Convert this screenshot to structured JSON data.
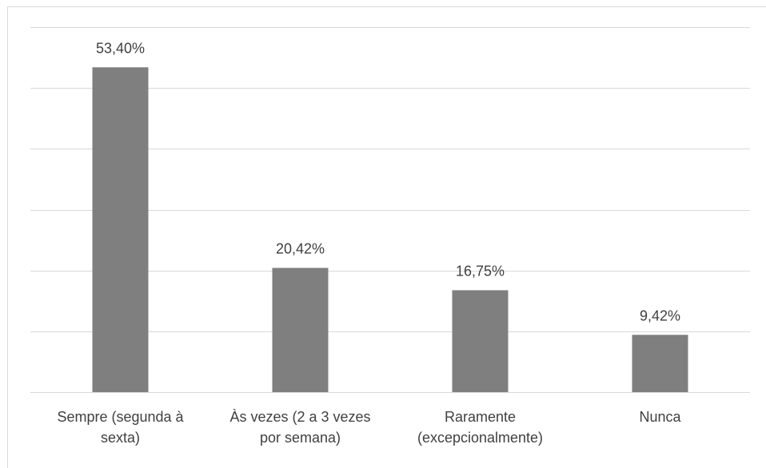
{
  "chart_data": {
    "type": "bar",
    "categories": [
      [
        "Sempre (segunda à",
        "sexta)"
      ],
      [
        "Às vezes (2 a 3 vezes",
        "por semana)"
      ],
      [
        "Raramente",
        "(excepcionalmente)"
      ],
      [
        "Nunca"
      ]
    ],
    "values": [
      53.4,
      20.42,
      16.75,
      9.42
    ],
    "data_labels": [
      "53,40%",
      "20,42%",
      "16,75%",
      "9,42%"
    ],
    "ylim": [
      0,
      60
    ],
    "grid": true,
    "colors": {
      "bar": "#7f7f7f",
      "grid": "#d9d9d9",
      "text": "#404040"
    }
  }
}
